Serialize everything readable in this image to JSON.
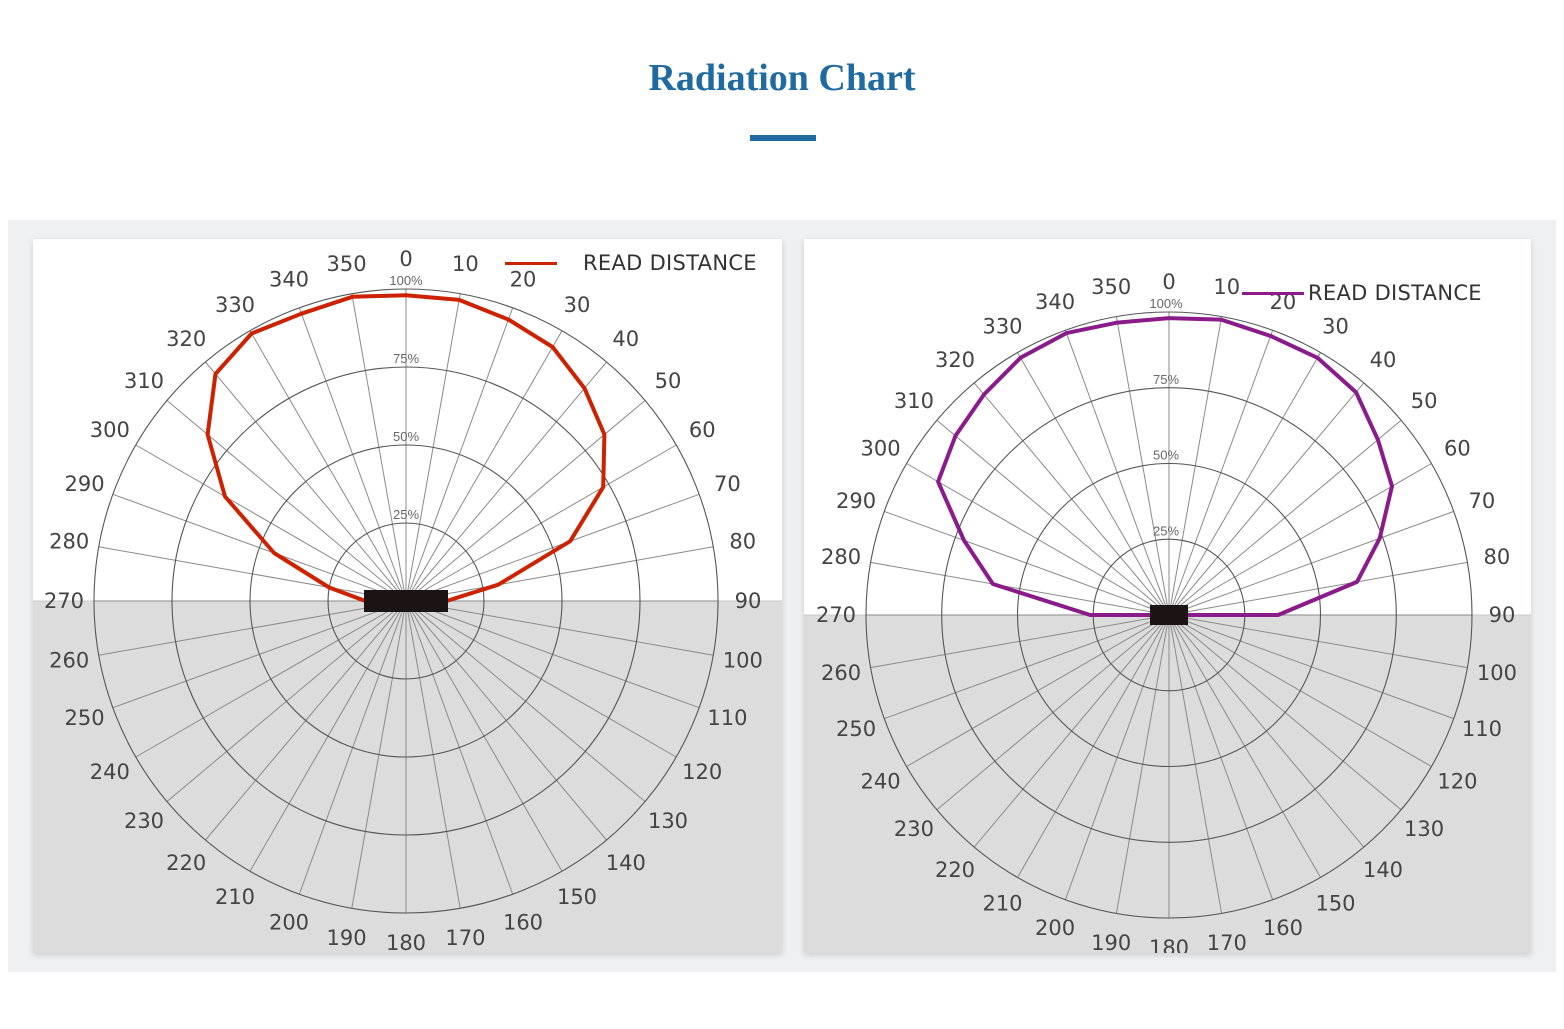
{
  "page": {
    "title": "Radiation Chart",
    "accent_color": "#1f6aa0"
  },
  "chart_data": [
    {
      "type": "polar-line",
      "angle_unit": "degrees",
      "angle_ticks": [
        0,
        10,
        20,
        30,
        40,
        50,
        60,
        70,
        80,
        90,
        100,
        110,
        120,
        130,
        140,
        150,
        160,
        170,
        180,
        190,
        200,
        210,
        220,
        230,
        240,
        250,
        260,
        270,
        280,
        290,
        300,
        310,
        320,
        330,
        340,
        350
      ],
      "radial_tick_labels": [
        "25%",
        "50%",
        "75%",
        "100%"
      ],
      "radial_range": [
        0,
        100
      ],
      "legend": {
        "label": "READ DISTANCE",
        "placement": "top-right"
      },
      "series": [
        {
          "name": "READ DISTANCE",
          "color": "#cc2200",
          "points": [
            {
              "angle": 0,
              "r": 98
            },
            {
              "angle": 10,
              "r": 98
            },
            {
              "angle": 20,
              "r": 96
            },
            {
              "angle": 30,
              "r": 94
            },
            {
              "angle": 40,
              "r": 89
            },
            {
              "angle": 50,
              "r": 83
            },
            {
              "angle": 60,
              "r": 73
            },
            {
              "angle": 70,
              "r": 56
            },
            {
              "angle": 80,
              "r": 30
            },
            {
              "angle": 90,
              "r": 13
            },
            {
              "angle": 270,
              "r": 13
            },
            {
              "angle": 280,
              "r": 25
            },
            {
              "angle": 290,
              "r": 45
            },
            {
              "angle": 300,
              "r": 67
            },
            {
              "angle": 310,
              "r": 83
            },
            {
              "angle": 320,
              "r": 95
            },
            {
              "angle": 330,
              "r": 99
            },
            {
              "angle": 340,
              "r": 98
            },
            {
              "angle": 350,
              "r": 99
            }
          ]
        }
      ]
    },
    {
      "type": "polar-line",
      "angle_unit": "degrees",
      "angle_ticks": [
        0,
        10,
        20,
        30,
        40,
        50,
        60,
        70,
        80,
        90,
        100,
        110,
        120,
        130,
        140,
        150,
        160,
        170,
        180,
        190,
        200,
        210,
        220,
        230,
        240,
        250,
        260,
        270,
        280,
        290,
        300,
        310,
        320,
        330,
        340,
        350
      ],
      "radial_tick_labels": [
        "25%",
        "50%",
        "75%",
        "100%"
      ],
      "radial_range": [
        0,
        100
      ],
      "legend": {
        "label": "READ DISTANCE",
        "placement": "top-right"
      },
      "series": [
        {
          "name": "READ DISTANCE",
          "color": "#8b1a8b",
          "points": [
            {
              "angle": 0,
              "r": 98
            },
            {
              "angle": 10,
              "r": 99
            },
            {
              "angle": 20,
              "r": 98
            },
            {
              "angle": 30,
              "r": 98
            },
            {
              "angle": 40,
              "r": 96
            },
            {
              "angle": 50,
              "r": 90
            },
            {
              "angle": 60,
              "r": 85
            },
            {
              "angle": 70,
              "r": 74
            },
            {
              "angle": 80,
              "r": 63
            },
            {
              "angle": 90,
              "r": 36
            },
            {
              "angle": 270,
              "r": 26
            },
            {
              "angle": 280,
              "r": 59
            },
            {
              "angle": 290,
              "r": 72
            },
            {
              "angle": 300,
              "r": 88
            },
            {
              "angle": 310,
              "r": 92
            },
            {
              "angle": 320,
              "r": 95
            },
            {
              "angle": 330,
              "r": 98
            },
            {
              "angle": 340,
              "r": 99
            },
            {
              "angle": 350,
              "r": 98
            }
          ]
        }
      ]
    }
  ]
}
